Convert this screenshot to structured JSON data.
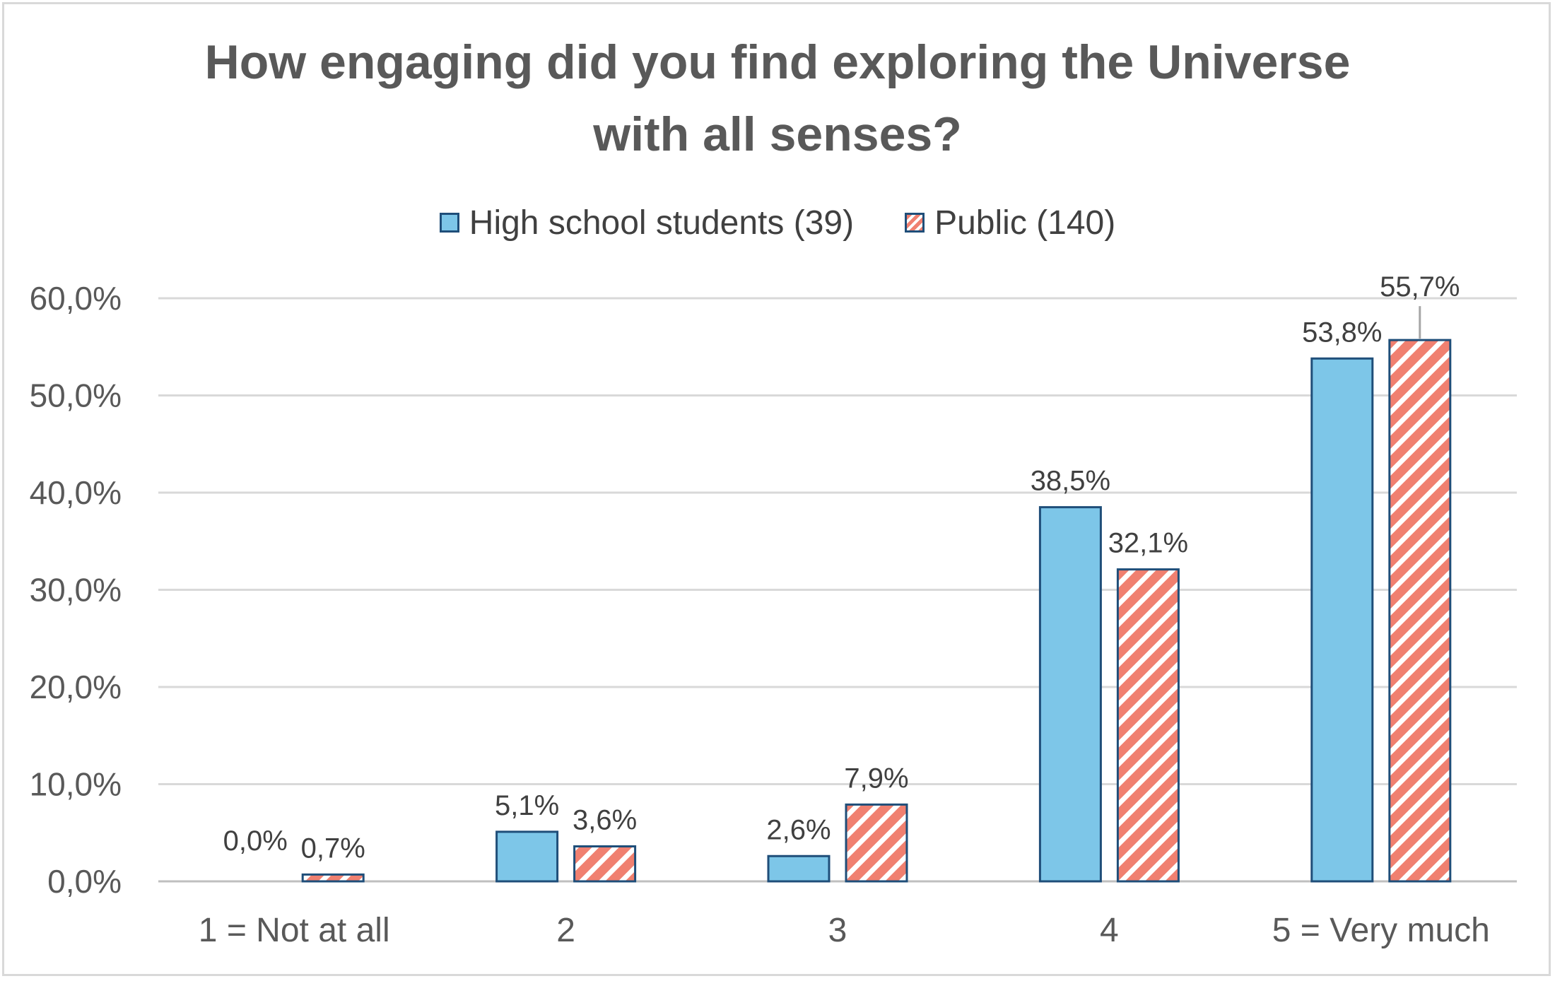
{
  "chart_data": {
    "type": "bar",
    "title_lines": [
      "How engaging did you find exploring the Universe",
      "with all senses?"
    ],
    "categories": [
      "1 = Not at all",
      "2",
      "3",
      "4",
      "5 = Very much"
    ],
    "series": [
      {
        "name": "High school students (39)",
        "values": [
          0.0,
          5.1,
          2.6,
          38.5,
          53.8
        ],
        "labels": [
          "0,0%",
          "5,1%",
          "2,6%",
          "38,5%",
          "53,8%"
        ],
        "color": "#7dc6e8",
        "pattern": "solid"
      },
      {
        "name": "Public (140)",
        "values": [
          0.7,
          3.6,
          7.9,
          32.1,
          55.7
        ],
        "labels": [
          "0,7%",
          "3,6%",
          "7,9%",
          "32,1%",
          "55,7%"
        ],
        "color": "#f08070",
        "pattern": "diagonal-stripes"
      }
    ],
    "ylim": [
      0,
      60
    ],
    "yticks": [
      0,
      10,
      20,
      30,
      40,
      50,
      60
    ],
    "ytick_labels": [
      "0,0%",
      "10,0%",
      "20,0%",
      "30,0%",
      "40,0%",
      "50,0%",
      "60,0%"
    ],
    "xlabel": "",
    "ylabel": "",
    "grid": true,
    "legend_position": "top-center",
    "bar_outline_color": "#1f4e79"
  }
}
